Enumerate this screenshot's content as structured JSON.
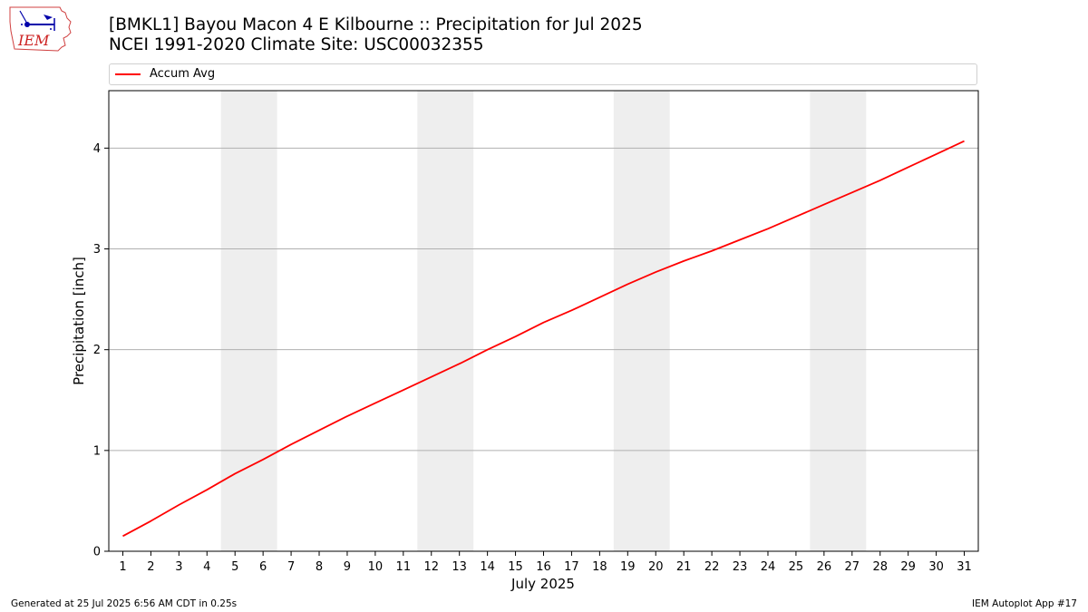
{
  "header": {
    "title_line1": "[BMKL1] Bayou Macon 4 E Kilbourne :: Precipitation for Jul 2025",
    "title_line2": "NCEI 1991-2020 Climate Site: USC00032355"
  },
  "logo": {
    "text": "IEM",
    "icon": "iowa-state-weather-logo"
  },
  "footer": {
    "left": "Generated at 25 Jul 2025 6:56 AM CDT in 0.25s",
    "right": "IEM Autoplot App #17"
  },
  "chart_data": {
    "type": "line",
    "xlabel": "July 2025",
    "ylabel": "Precipitation [inch]",
    "x": [
      1,
      2,
      3,
      4,
      5,
      6,
      7,
      8,
      9,
      10,
      11,
      12,
      13,
      14,
      15,
      16,
      17,
      18,
      19,
      20,
      21,
      22,
      23,
      24,
      25,
      26,
      27,
      28,
      29,
      30,
      31
    ],
    "series": [
      {
        "name": "Accum Avg",
        "color": "#ff0000",
        "values": [
          0.15,
          0.3,
          0.46,
          0.61,
          0.77,
          0.91,
          1.06,
          1.2,
          1.34,
          1.47,
          1.6,
          1.73,
          1.86,
          2.0,
          2.13,
          2.27,
          2.39,
          2.52,
          2.65,
          2.77,
          2.88,
          2.98,
          3.09,
          3.2,
          3.32,
          3.44,
          3.56,
          3.68,
          3.81,
          3.94,
          4.07
        ]
      }
    ],
    "weekend_bands": [
      [
        4.5,
        6.5
      ],
      [
        11.5,
        13.5
      ],
      [
        18.5,
        20.5
      ],
      [
        25.5,
        27.5
      ]
    ],
    "band_color": "#eeeeee",
    "xlim": [
      0.5,
      31.5
    ],
    "ylim": [
      0,
      4.57
    ],
    "yticks": [
      0,
      1,
      2,
      3,
      4
    ],
    "grid": "y",
    "legend_placement": "top"
  }
}
